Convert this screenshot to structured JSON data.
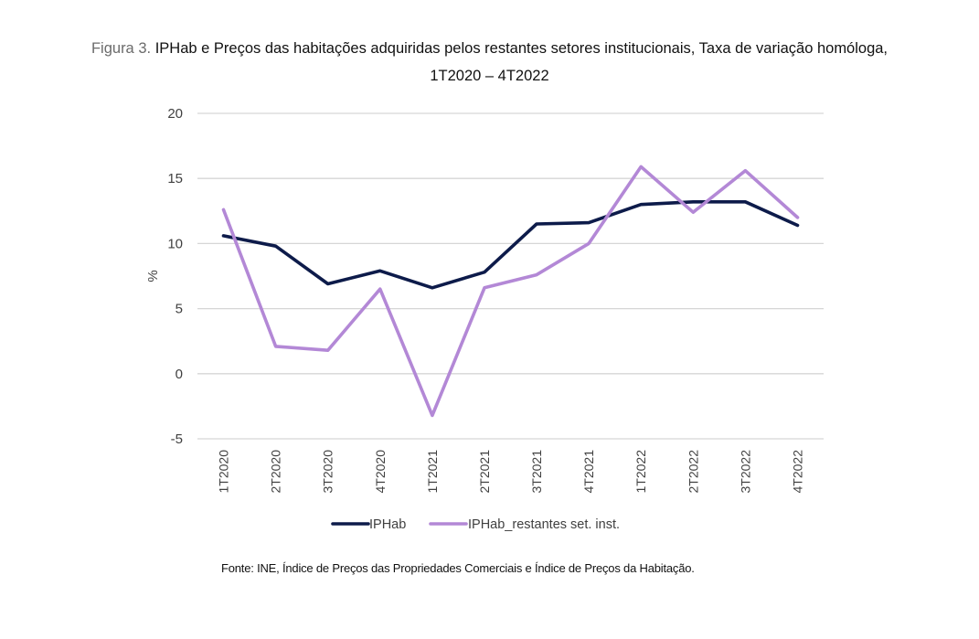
{
  "title": {
    "prefix": "Figura 3.",
    "text": "IPHab e Preços das habitações adquiridas pelos restantes setores institucionais, Taxa de variação homóloga,",
    "line2": "1T2020 – 4T2022"
  },
  "source": {
    "label": "Fonte:",
    "text": "INE, Índice de Preços das Propriedades Comerciais e Índice de Preços da Habitação."
  },
  "colors": {
    "iphab": "#0d1b4a",
    "restantes": "#b388d6",
    "grid": "#d6d6d6"
  },
  "chart_data": {
    "type": "line",
    "title": "IPHab e Preços das habitações adquiridas pelos restantes setores institucionais, Taxa de variação homóloga, 1T2020 – 4T2022",
    "xlabel": "",
    "ylabel": "%",
    "ylim": [
      -5,
      20
    ],
    "yticks": [
      20,
      15,
      10,
      5,
      0,
      -5
    ],
    "grid": true,
    "legend_position": "bottom",
    "categories": [
      "1T2020",
      "2T2020",
      "3T2020",
      "4T2020",
      "1T2021",
      "2T2021",
      "3T2021",
      "4T2021",
      "1T2022",
      "2T2022",
      "3T2022",
      "4T2022"
    ],
    "series": [
      {
        "name": "IPHab",
        "values": [
          10.6,
          9.8,
          6.9,
          7.9,
          6.6,
          7.8,
          11.5,
          11.6,
          13.0,
          13.2,
          13.2,
          11.4
        ]
      },
      {
        "name": "IPHab_restantes set. inst.",
        "values": [
          12.6,
          2.1,
          1.8,
          6.5,
          -3.2,
          6.6,
          7.6,
          10.0,
          15.9,
          12.4,
          15.6,
          12.0
        ]
      }
    ]
  }
}
